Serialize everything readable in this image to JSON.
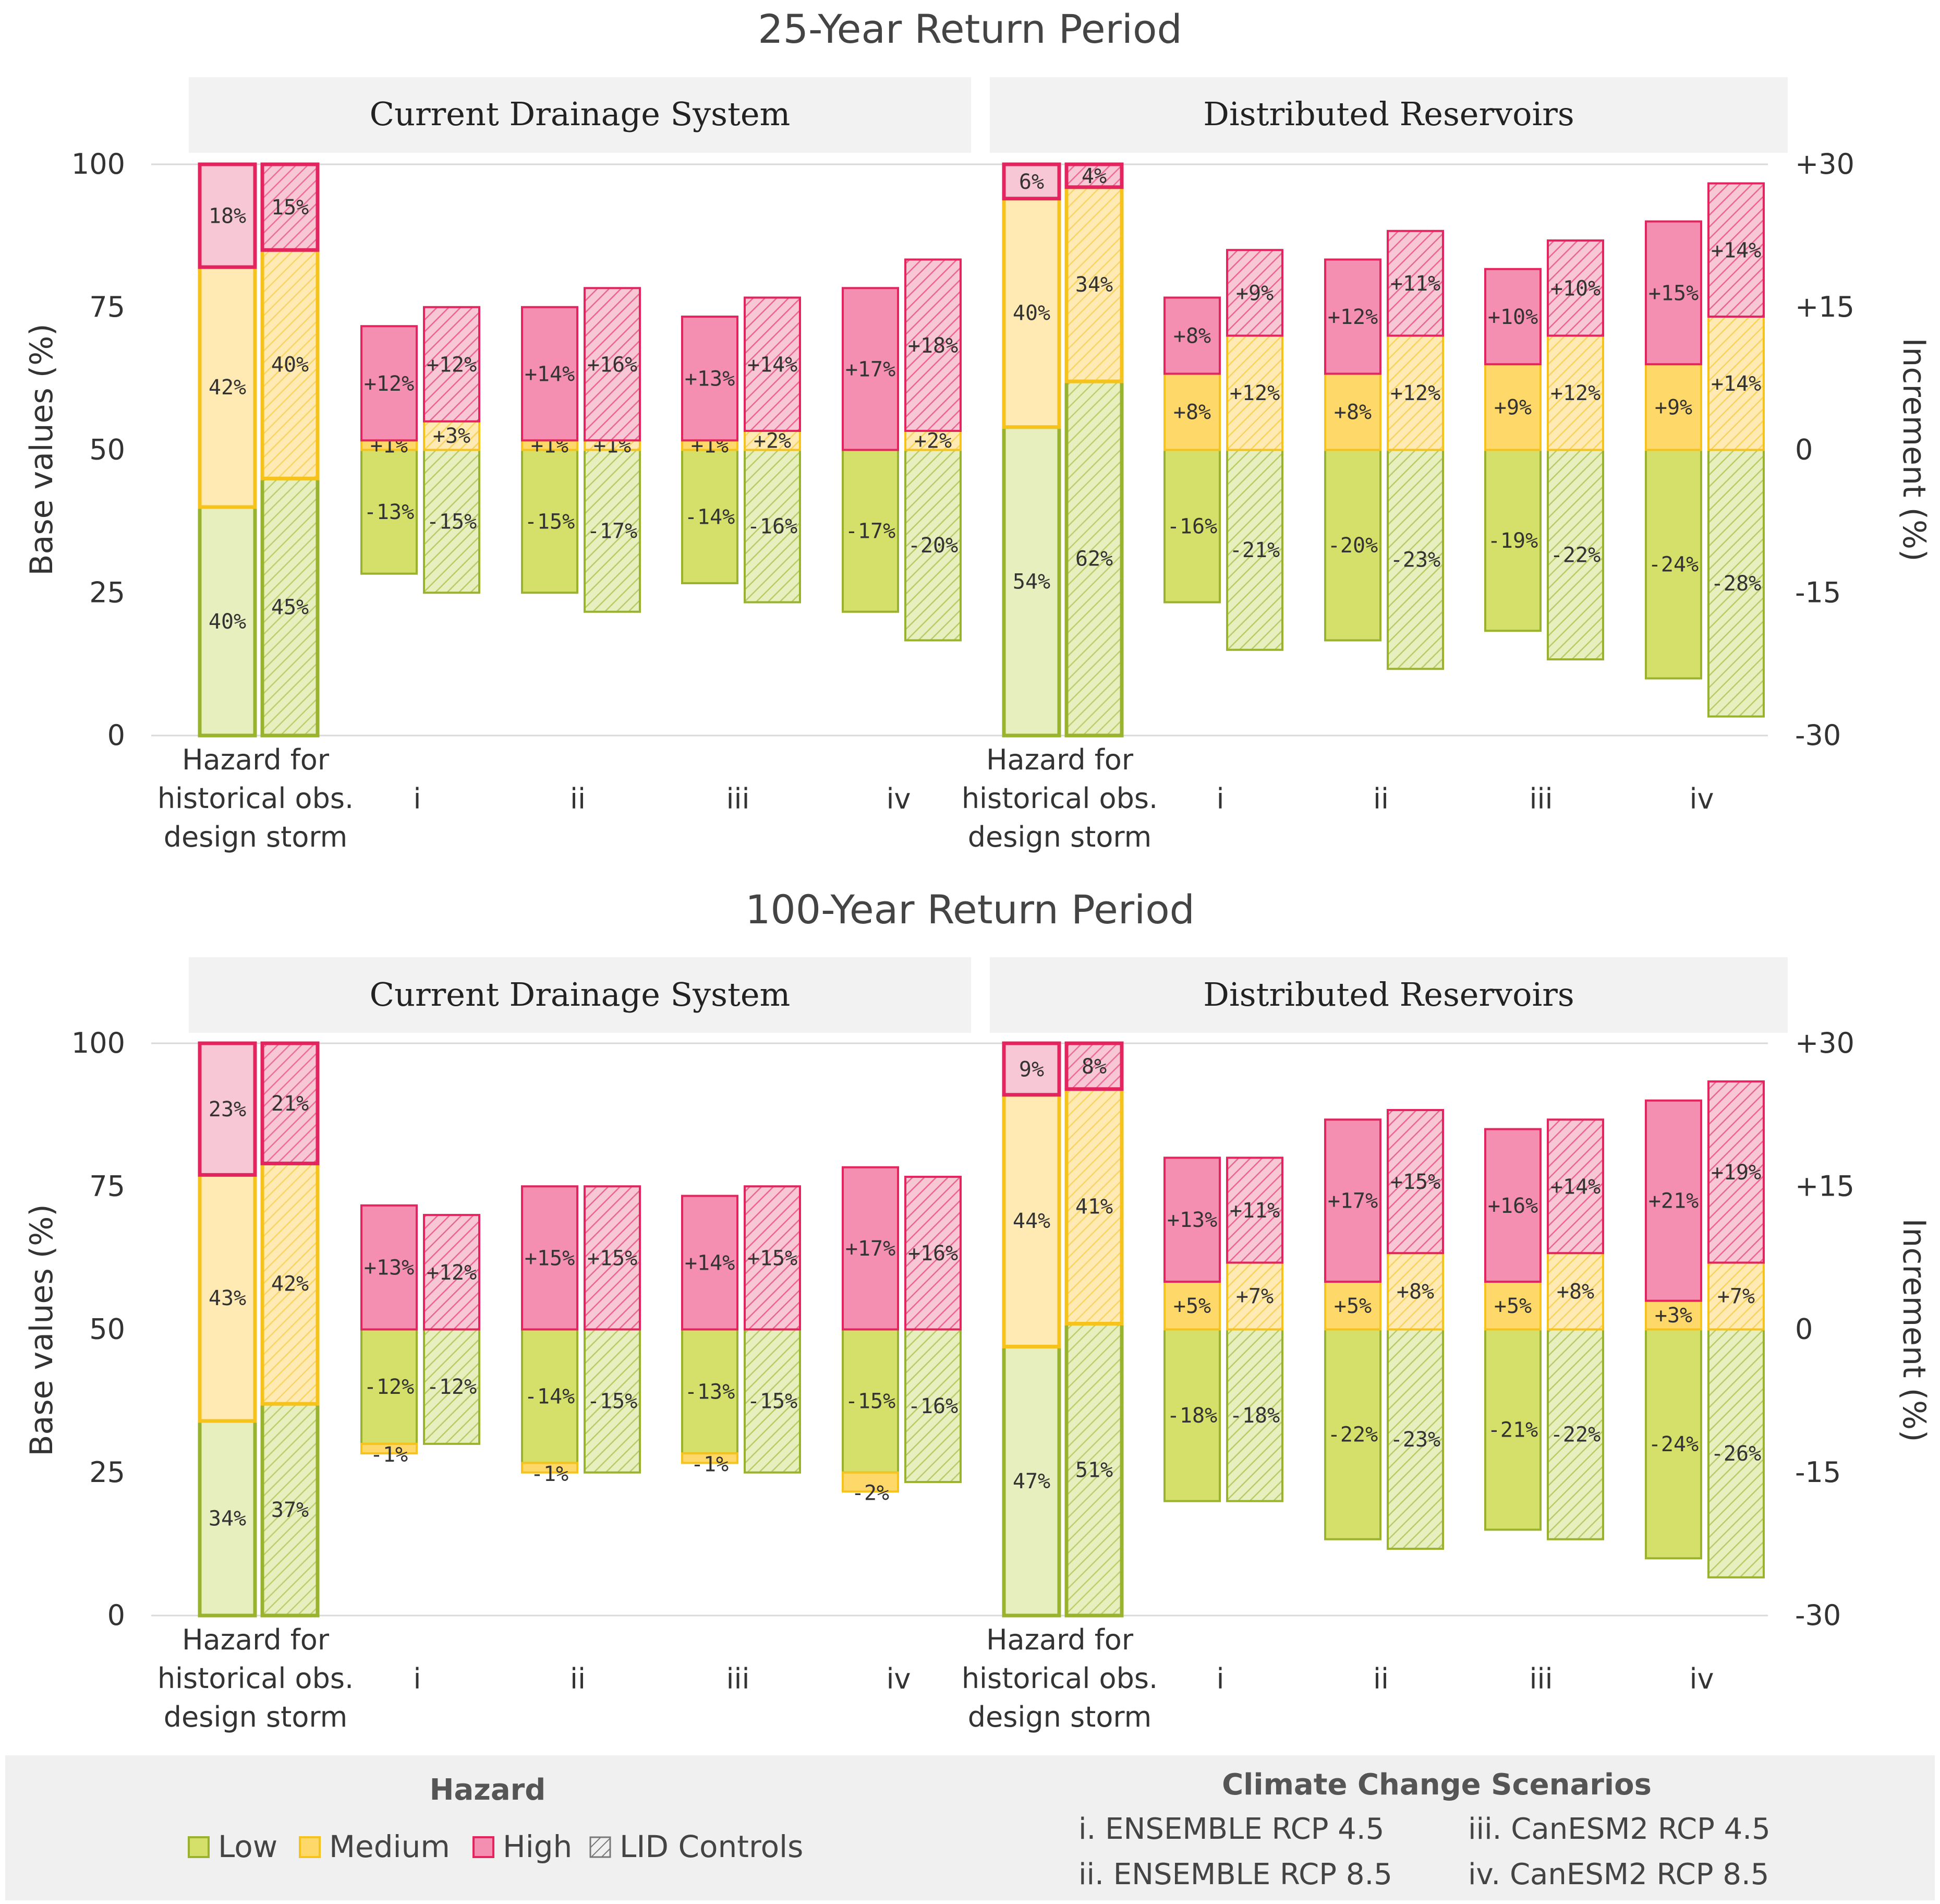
{
  "colors": {
    "low_fill": "#d4e06a",
    "low_fill_light": "#e6efbd",
    "low_stroke": "#9ab32e",
    "medium_fill": "#ffd86a",
    "medium_fill_light": "#ffeab3",
    "medium_stroke": "#f6c21c",
    "high_fill": "#f48fb1",
    "high_fill_light": "#f8c7d6",
    "high_stroke": "#e3245f",
    "facet_bg": "#f2f2f2",
    "legend_bg": "#f0f0f0",
    "gridline": "#d9d9d9"
  },
  "legend": {
    "hazard_title": "Hazard",
    "low": "Low",
    "medium": "Medium",
    "high": "High",
    "lid": "LID Controls",
    "scenarios_title": "Climate Change Scenarios",
    "scenarios": [
      "i.  ENSEMBLE RCP 4.5",
      "ii.  ENSEMBLE RCP 8.5",
      "iii.  CanESM2 RCP 4.5",
      "iv.  CanESM2 RCP 8.5"
    ]
  },
  "chart_data": [
    {
      "type": "bar",
      "title": "25-Year Return Period",
      "ylabel": "Base values (%)",
      "y2label": "Increment (%)",
      "yticks": [
        "0",
        "25",
        "50",
        "75",
        "100"
      ],
      "y2ticks": [
        "-30",
        "-15",
        "0",
        "+15",
        "+30"
      ],
      "ylim": [
        0,
        100
      ],
      "y2lim": [
        -30,
        30
      ],
      "categories": [
        "Hazard for historical obs. design storm",
        "i",
        "ii",
        "iii",
        "iv"
      ],
      "panels": [
        {
          "label": "Current Drainage System",
          "groups": [
            {
              "category": "Hazard for historical obs. design storm",
              "kind": "base",
              "bars": [
                {
                  "lid": false,
                  "segments": [
                    {
                      "class": "low",
                      "value": 40,
                      "label": "40%"
                    },
                    {
                      "class": "medium",
                      "value": 42,
                      "label": "42%"
                    },
                    {
                      "class": "high",
                      "value": 18,
                      "label": "18%"
                    }
                  ]
                },
                {
                  "lid": true,
                  "segments": [
                    {
                      "class": "low",
                      "value": 45,
                      "label": "45%"
                    },
                    {
                      "class": "medium",
                      "value": 40,
                      "label": "40%"
                    },
                    {
                      "class": "high",
                      "value": 15,
                      "label": "15%"
                    }
                  ]
                }
              ]
            },
            {
              "category": "i",
              "kind": "increment",
              "bars": [
                {
                  "lid": false,
                  "low": -13,
                  "medium": 1,
                  "high": 12,
                  "labels": {
                    "low": "-13%",
                    "medium": "+1%",
                    "high": "+12%"
                  }
                },
                {
                  "lid": true,
                  "low": -15,
                  "medium": 3,
                  "high": 12,
                  "labels": {
                    "low": "-15%",
                    "medium": "+3%",
                    "high": "+12%"
                  }
                }
              ]
            },
            {
              "category": "ii",
              "kind": "increment",
              "bars": [
                {
                  "lid": false,
                  "low": -15,
                  "medium": 1,
                  "high": 14,
                  "labels": {
                    "low": "-15%",
                    "medium": "+1%",
                    "high": "+14%"
                  }
                },
                {
                  "lid": true,
                  "low": -17,
                  "medium": 1,
                  "high": 16,
                  "labels": {
                    "low": "-17%",
                    "medium": "+1%",
                    "high": "+16%"
                  }
                }
              ]
            },
            {
              "category": "iii",
              "kind": "increment",
              "bars": [
                {
                  "lid": false,
                  "low": -14,
                  "medium": 1,
                  "high": 13,
                  "labels": {
                    "low": "-14%",
                    "medium": "+1%",
                    "high": "+13%"
                  }
                },
                {
                  "lid": true,
                  "low": -16,
                  "medium": 2,
                  "high": 14,
                  "labels": {
                    "low": "-16%",
                    "medium": "+2%",
                    "high": "+14%"
                  }
                }
              ]
            },
            {
              "category": "iv",
              "kind": "increment",
              "bars": [
                {
                  "lid": false,
                  "low": -17,
                  "medium": 0,
                  "high": 17,
                  "labels": {
                    "low": "-17%",
                    "high": "+17%"
                  }
                },
                {
                  "lid": true,
                  "low": -20,
                  "medium": 2,
                  "high": 18,
                  "labels": {
                    "low": "-20%",
                    "medium": "+2%",
                    "high": "+18%"
                  }
                }
              ]
            }
          ]
        },
        {
          "label": "Distributed Reservoirs",
          "groups": [
            {
              "category": "Hazard for historical obs. design storm",
              "kind": "base",
              "bars": [
                {
                  "lid": false,
                  "segments": [
                    {
                      "class": "low",
                      "value": 54,
                      "label": "54%"
                    },
                    {
                      "class": "medium",
                      "value": 40,
                      "label": "40%"
                    },
                    {
                      "class": "high",
                      "value": 6,
                      "label": "6%"
                    }
                  ]
                },
                {
                  "lid": true,
                  "segments": [
                    {
                      "class": "low",
                      "value": 62,
                      "label": "62%"
                    },
                    {
                      "class": "medium",
                      "value": 34,
                      "label": "34%"
                    },
                    {
                      "class": "high",
                      "value": 4,
                      "label": "4%"
                    }
                  ]
                }
              ]
            },
            {
              "category": "i",
              "kind": "increment",
              "bars": [
                {
                  "lid": false,
                  "low": -16,
                  "medium": 8,
                  "high": 8,
                  "labels": {
                    "low": "-16%",
                    "medium": "+8%",
                    "high": "+8%"
                  }
                },
                {
                  "lid": true,
                  "low": -21,
                  "medium": 12,
                  "high": 9,
                  "labels": {
                    "low": "-21%",
                    "medium": "+12%",
                    "high": "+9%"
                  }
                }
              ]
            },
            {
              "category": "ii",
              "kind": "increment",
              "bars": [
                {
                  "lid": false,
                  "low": -20,
                  "medium": 8,
                  "high": 12,
                  "labels": {
                    "low": "-20%",
                    "medium": "+8%",
                    "high": "+12%"
                  }
                },
                {
                  "lid": true,
                  "low": -23,
                  "medium": 12,
                  "high": 11,
                  "labels": {
                    "low": "-23%",
                    "medium": "+12%",
                    "high": "+11%"
                  }
                }
              ]
            },
            {
              "category": "iii",
              "kind": "increment",
              "bars": [
                {
                  "lid": false,
                  "low": -19,
                  "medium": 9,
                  "high": 10,
                  "labels": {
                    "low": "-19%",
                    "medium": "+9%",
                    "high": "+10%"
                  }
                },
                {
                  "lid": true,
                  "low": -22,
                  "medium": 12,
                  "high": 10,
                  "labels": {
                    "low": "-22%",
                    "medium": "+12%",
                    "high": "+10%"
                  }
                }
              ]
            },
            {
              "category": "iv",
              "kind": "increment",
              "bars": [
                {
                  "lid": false,
                  "low": -24,
                  "medium": 9,
                  "high": 15,
                  "labels": {
                    "low": "-24%",
                    "medium": "+9%",
                    "high": "+15%"
                  }
                },
                {
                  "lid": true,
                  "low": -28,
                  "medium": 14,
                  "high": 14,
                  "labels": {
                    "low": "-28%",
                    "medium": "+14%",
                    "high": "+14%"
                  }
                }
              ]
            }
          ]
        }
      ]
    },
    {
      "type": "bar",
      "title": "100-Year Return Period",
      "ylabel": "Base values (%)",
      "y2label": "Increment (%)",
      "yticks": [
        "0",
        "25",
        "50",
        "75",
        "100"
      ],
      "y2ticks": [
        "-30",
        "-15",
        "0",
        "+15",
        "+30"
      ],
      "ylim": [
        0,
        100
      ],
      "y2lim": [
        -30,
        30
      ],
      "categories": [
        "Hazard for historical obs. design storm",
        "i",
        "ii",
        "iii",
        "iv"
      ],
      "panels": [
        {
          "label": "Current Drainage System",
          "groups": [
            {
              "category": "Hazard for historical obs. design storm",
              "kind": "base",
              "bars": [
                {
                  "lid": false,
                  "segments": [
                    {
                      "class": "low",
                      "value": 34,
                      "label": "34%"
                    },
                    {
                      "class": "medium",
                      "value": 43,
                      "label": "43%"
                    },
                    {
                      "class": "high",
                      "value": 23,
                      "label": "23%"
                    }
                  ]
                },
                {
                  "lid": true,
                  "segments": [
                    {
                      "class": "low",
                      "value": 37,
                      "label": "37%"
                    },
                    {
                      "class": "medium",
                      "value": 42,
                      "label": "42%"
                    },
                    {
                      "class": "high",
                      "value": 21,
                      "label": "21%"
                    }
                  ]
                }
              ]
            },
            {
              "category": "i",
              "kind": "increment",
              "bars": [
                {
                  "lid": false,
                  "low": -12,
                  "medium": -1,
                  "high": 13,
                  "labels": {
                    "low": "-12%",
                    "medium": "-1%",
                    "high": "+13%"
                  }
                },
                {
                  "lid": true,
                  "low": -12,
                  "medium": 0,
                  "high": 12,
                  "labels": {
                    "low": "-12%",
                    "high": "+12%"
                  }
                }
              ]
            },
            {
              "category": "ii",
              "kind": "increment",
              "bars": [
                {
                  "lid": false,
                  "low": -14,
                  "medium": -1,
                  "high": 15,
                  "labels": {
                    "low": "-14%",
                    "medium": "-1%",
                    "high": "+15%"
                  }
                },
                {
                  "lid": true,
                  "low": -15,
                  "medium": 0,
                  "high": 15,
                  "labels": {
                    "low": "-15%",
                    "high": "+15%"
                  }
                }
              ]
            },
            {
              "category": "iii",
              "kind": "increment",
              "bars": [
                {
                  "lid": false,
                  "low": -13,
                  "medium": -1,
                  "high": 14,
                  "labels": {
                    "low": "-13%",
                    "medium": "-1%",
                    "high": "+14%"
                  }
                },
                {
                  "lid": true,
                  "low": -15,
                  "medium": 0,
                  "high": 15,
                  "labels": {
                    "low": "-15%",
                    "high": "+15%"
                  }
                }
              ]
            },
            {
              "category": "iv",
              "kind": "increment",
              "bars": [
                {
                  "lid": false,
                  "low": -15,
                  "medium": -2,
                  "high": 17,
                  "labels": {
                    "low": "-15%",
                    "medium": "-2%",
                    "high": "+17%"
                  }
                },
                {
                  "lid": true,
                  "low": -16,
                  "medium": 0,
                  "high": 16,
                  "labels": {
                    "low": "-16%",
                    "high": "+16%"
                  }
                }
              ]
            }
          ]
        },
        {
          "label": "Distributed Reservoirs",
          "groups": [
            {
              "category": "Hazard for historical obs. design storm",
              "kind": "base",
              "bars": [
                {
                  "lid": false,
                  "segments": [
                    {
                      "class": "low",
                      "value": 47,
                      "label": "47%"
                    },
                    {
                      "class": "medium",
                      "value": 44,
                      "label": "44%"
                    },
                    {
                      "class": "high",
                      "value": 9,
                      "label": "9%"
                    }
                  ]
                },
                {
                  "lid": true,
                  "segments": [
                    {
                      "class": "low",
                      "value": 51,
                      "label": "51%"
                    },
                    {
                      "class": "medium",
                      "value": 41,
                      "label": "41%"
                    },
                    {
                      "class": "high",
                      "value": 8,
                      "label": "8%"
                    }
                  ]
                }
              ]
            },
            {
              "category": "i",
              "kind": "increment",
              "bars": [
                {
                  "lid": false,
                  "low": -18,
                  "medium": 5,
                  "high": 13,
                  "labels": {
                    "low": "-18%",
                    "medium": "+5%",
                    "high": "+13%"
                  }
                },
                {
                  "lid": true,
                  "low": -18,
                  "medium": 7,
                  "high": 11,
                  "labels": {
                    "low": "-18%",
                    "medium": "+7%",
                    "high": "+11%"
                  }
                }
              ]
            },
            {
              "category": "ii",
              "kind": "increment",
              "bars": [
                {
                  "lid": false,
                  "low": -22,
                  "medium": 5,
                  "high": 17,
                  "labels": {
                    "low": "-22%",
                    "medium": "+5%",
                    "high": "+17%"
                  }
                },
                {
                  "lid": true,
                  "low": -23,
                  "medium": 8,
                  "high": 15,
                  "labels": {
                    "low": "-23%",
                    "medium": "+8%",
                    "high": "+15%"
                  }
                }
              ]
            },
            {
              "category": "iii",
              "kind": "increment",
              "bars": [
                {
                  "lid": false,
                  "low": -21,
                  "medium": 5,
                  "high": 16,
                  "labels": {
                    "low": "-21%",
                    "medium": "+5%",
                    "high": "+16%"
                  }
                },
                {
                  "lid": true,
                  "low": -22,
                  "medium": 8,
                  "high": 14,
                  "labels": {
                    "low": "-22%",
                    "medium": "+8%",
                    "high": "+14%"
                  }
                }
              ]
            },
            {
              "category": "iv",
              "kind": "increment",
              "bars": [
                {
                  "lid": false,
                  "low": -24,
                  "medium": 3,
                  "high": 21,
                  "labels": {
                    "low": "-24%",
                    "medium": "+3%",
                    "high": "+21%"
                  }
                },
                {
                  "lid": true,
                  "low": -26,
                  "medium": 7,
                  "high": 19,
                  "labels": {
                    "low": "-26%",
                    "medium": "+7%",
                    "high": "+19%"
                  }
                }
              ]
            }
          ]
        }
      ]
    }
  ]
}
